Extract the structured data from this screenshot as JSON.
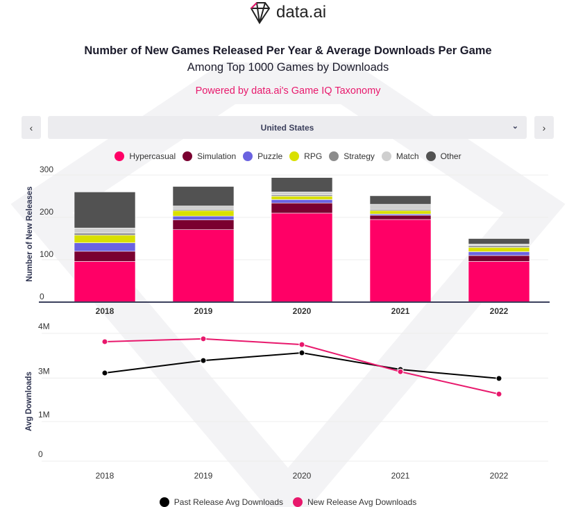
{
  "logo": {
    "text": "data.ai"
  },
  "title": "Number of New Games Released Per Year &  Average Downloads Per Game",
  "subtitle": "Among Top 1000 Games by Downloads",
  "powered_by": "Powered by data.ai's Game IQ Taxonomy",
  "filter": {
    "prev": "‹",
    "next": "›",
    "selected": "United States",
    "chevron": "⌄"
  },
  "colors": {
    "accent": "#e8186c",
    "axis": "#2e3350"
  },
  "chart_data": [
    {
      "type": "bar",
      "stacked": true,
      "title": "Number of New Games Released Per Year",
      "ylabel": "Number of New Releases",
      "xlabel": "",
      "ylim": [
        0,
        300
      ],
      "yticks": [
        0,
        100,
        200,
        300
      ],
      "ytick_labels": [
        "0",
        "100",
        "200",
        "300"
      ],
      "categories": [
        "2018",
        "2019",
        "2020",
        "2021",
        "2022"
      ],
      "legend_position": "top-center",
      "series": [
        {
          "name": "Hypercasual",
          "color": "#ff0066",
          "values": [
            96,
            171,
            210,
            195,
            96
          ]
        },
        {
          "name": "Simulation",
          "color": "#7a0030",
          "values": [
            24,
            23,
            24,
            10,
            14
          ]
        },
        {
          "name": "Puzzle",
          "color": "#6b63e0",
          "values": [
            20,
            9,
            8,
            3,
            9
          ]
        },
        {
          "name": "RPG",
          "color": "#d9e000",
          "values": [
            18,
            13,
            8,
            8,
            10
          ]
        },
        {
          "name": "Strategy",
          "color": "#8c8c8c",
          "values": [
            5,
            3,
            3,
            3,
            4
          ]
        },
        {
          "name": "Match",
          "color": "#cfcfcf",
          "values": [
            12,
            8,
            7,
            12,
            4
          ]
        },
        {
          "name": "Other",
          "color": "#525252",
          "values": [
            85,
            46,
            34,
            20,
            13
          ]
        }
      ]
    },
    {
      "type": "line",
      "title": "Average Downloads Per Game",
      "ylabel": "Avg Downloads",
      "xlabel": "",
      "ylim": [
        0,
        4
      ],
      "unit": "M",
      "yticks": [
        0,
        1.24,
        2.6,
        4
      ],
      "ytick_labels": [
        "0",
        "1M",
        "3M",
        "4M"
      ],
      "categories": [
        "2018",
        "2019",
        "2020",
        "2021",
        "2022"
      ],
      "legend_position": "bottom-center",
      "series": [
        {
          "name": "Past Release Avg Downloads",
          "color": "#000000",
          "values": [
            2.76,
            3.15,
            3.39,
            2.87,
            2.59
          ]
        },
        {
          "name": "New Release Avg Downloads",
          "color": "#e8186c",
          "values": [
            3.74,
            3.83,
            3.65,
            2.8,
            2.1
          ]
        }
      ]
    }
  ]
}
